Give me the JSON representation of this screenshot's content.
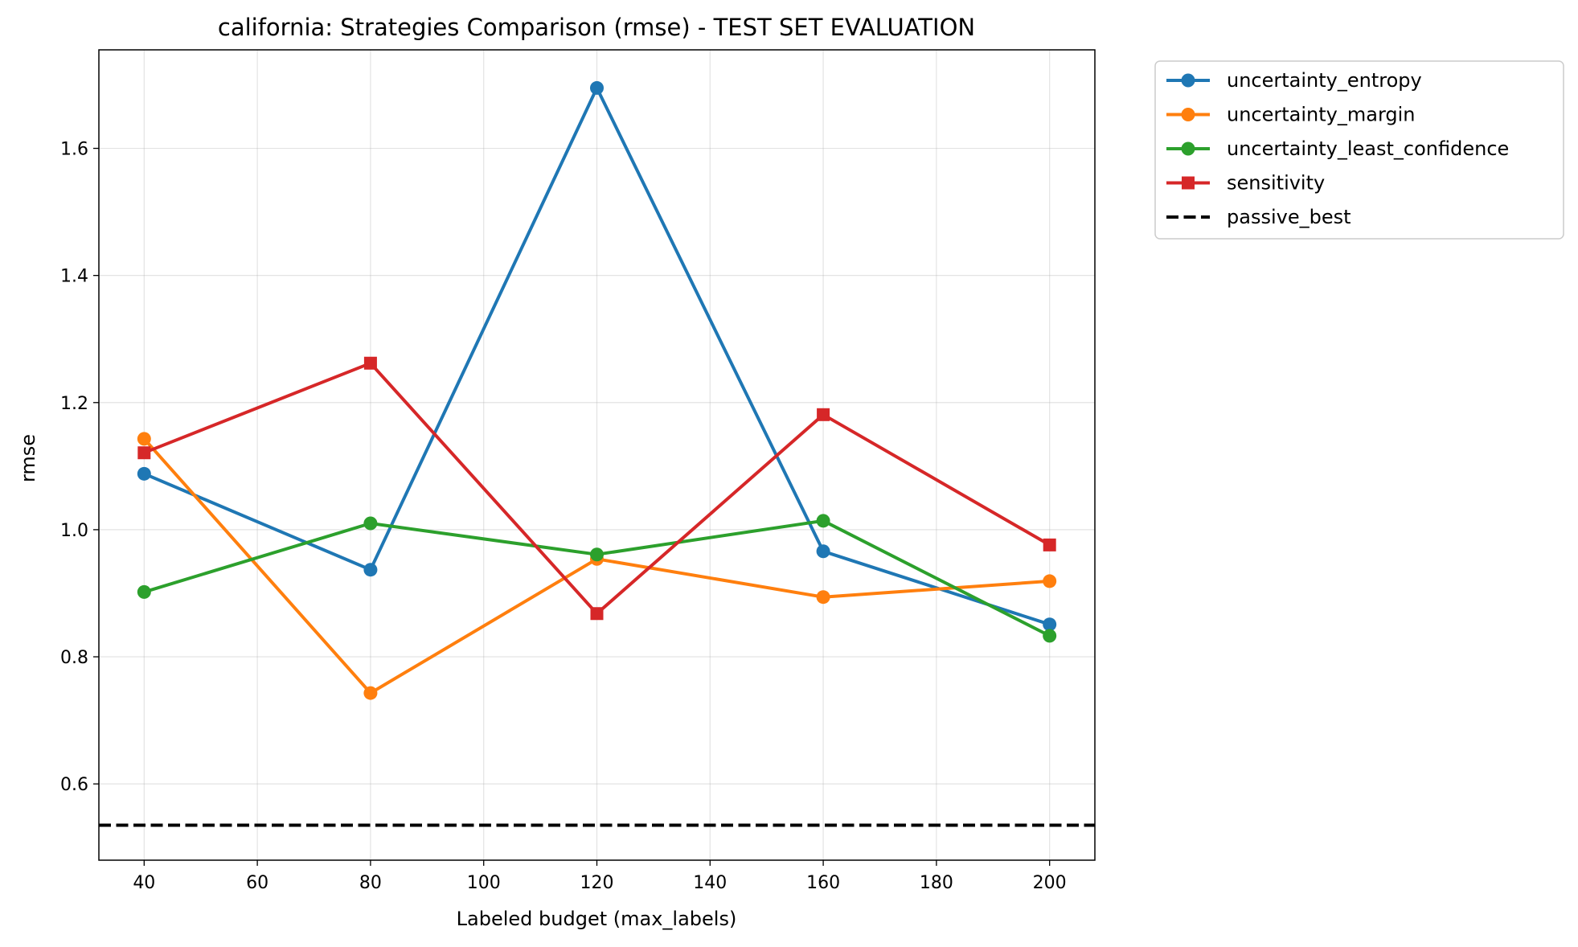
{
  "chart_data": {
    "type": "line",
    "title": "california: Strategies Comparison (rmse) - TEST SET EVALUATION",
    "xlabel": "Labeled budget (max_labels)",
    "ylabel": "rmse",
    "xlim": [
      32,
      208
    ],
    "ylim": [
      0.48,
      1.755
    ],
    "xticks": [
      40,
      60,
      80,
      100,
      120,
      140,
      160,
      180,
      200
    ],
    "yticks": [
      0.6,
      0.8,
      1.0,
      1.2,
      1.4,
      1.6
    ],
    "grid": true,
    "legend_position": "outside-top-right",
    "x": [
      40,
      80,
      120,
      160,
      200
    ],
    "series": [
      {
        "name": "uncertainty_entropy",
        "color": "#1f77b4",
        "marker": "circle",
        "style": "solid",
        "values": [
          1.088,
          0.937,
          1.695,
          0.966,
          0.851
        ]
      },
      {
        "name": "uncertainty_margin",
        "color": "#ff7f0e",
        "marker": "circle",
        "style": "solid",
        "values": [
          1.143,
          0.743,
          0.954,
          0.894,
          0.919
        ]
      },
      {
        "name": "uncertainty_least_confidence",
        "color": "#2ca02c",
        "marker": "circle",
        "style": "solid",
        "values": [
          0.902,
          1.01,
          0.961,
          1.014,
          0.833
        ]
      },
      {
        "name": "sensitivity",
        "color": "#d62728",
        "marker": "square",
        "style": "solid",
        "values": [
          1.121,
          1.262,
          0.868,
          1.181,
          0.976
        ]
      },
      {
        "name": "passive_best",
        "color": "#000000",
        "marker": "none",
        "style": "dashed",
        "hline": 0.535
      }
    ]
  }
}
